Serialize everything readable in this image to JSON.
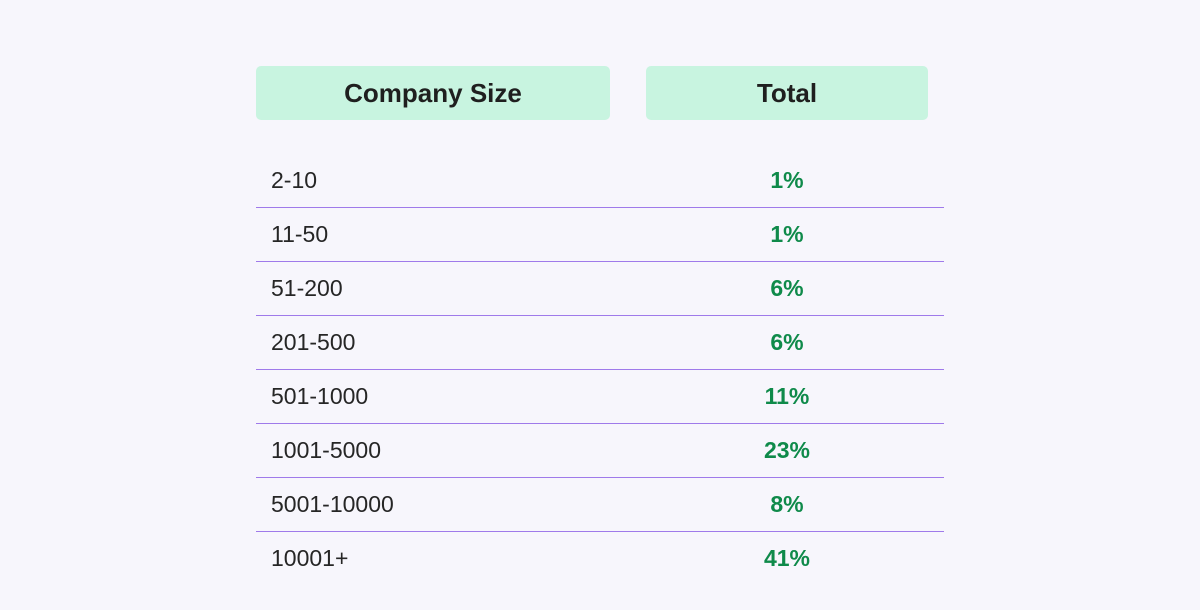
{
  "colors": {
    "header_bg": "#c8f4e0",
    "value_text": "#0f8a4a",
    "divider": "#9f7aea"
  },
  "chart_data": {
    "type": "table",
    "columns": [
      "Company Size",
      "Total"
    ],
    "rows": [
      {
        "size": "2-10",
        "total": "1%"
      },
      {
        "size": "11-50",
        "total": "1%"
      },
      {
        "size": "51-200",
        "total": "6%"
      },
      {
        "size": "201-500",
        "total": "6%"
      },
      {
        "size": "501-1000",
        "total": "11%"
      },
      {
        "size": "1001-5000",
        "total": "23%"
      },
      {
        "size": "5001-10000",
        "total": "8%"
      },
      {
        "size": "10001+",
        "total": "41%"
      }
    ]
  }
}
